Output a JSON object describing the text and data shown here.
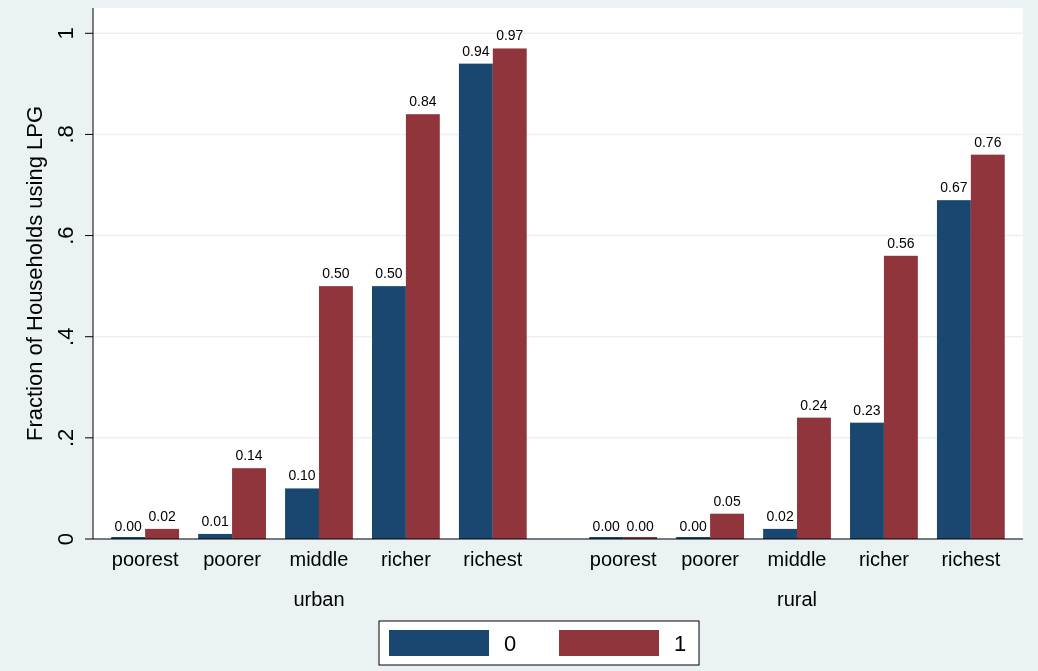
{
  "chart_data": {
    "type": "bar",
    "ylabel": "Fraction of Households using LPG",
    "categories": [
      "poorest",
      "poorer",
      "middle",
      "richer",
      "richest",
      "poorest",
      "poorer",
      "middle",
      "richer",
      "richest"
    ],
    "series": [
      {
        "name": "0",
        "color": "#1a476f",
        "values": [
          0.0,
          0.01,
          0.1,
          0.5,
          0.94,
          0.0,
          0.0,
          0.02,
          0.23,
          0.67
        ],
        "value_labels": [
          "0.00",
          "0.01",
          "0.10",
          "0.50",
          "0.94",
          "0.00",
          "0.00",
          "0.02",
          "0.23",
          "0.67"
        ]
      },
      {
        "name": "1",
        "color": "#90353b",
        "values": [
          0.02,
          0.14,
          0.5,
          0.84,
          0.97,
          0.0,
          0.05,
          0.24,
          0.56,
          0.76
        ],
        "value_labels": [
          "0.02",
          "0.14",
          "0.50",
          "0.84",
          "0.97",
          "0.00",
          "0.05",
          "0.24",
          "0.56",
          "0.76"
        ]
      }
    ],
    "annotations": [
      "urban",
      "rural"
    ],
    "ylim": [
      0,
      1.05
    ],
    "yticks": [
      {
        "value": 0,
        "label": "0"
      },
      {
        "value": 0.2,
        "label": ".2"
      },
      {
        "value": 0.4,
        "label": ".4"
      },
      {
        "value": 0.6,
        "label": ".6"
      },
      {
        "value": 0.8,
        "label": ".8"
      },
      {
        "value": 1,
        "label": "1"
      }
    ],
    "grid": "y",
    "legend": "bottom"
  }
}
